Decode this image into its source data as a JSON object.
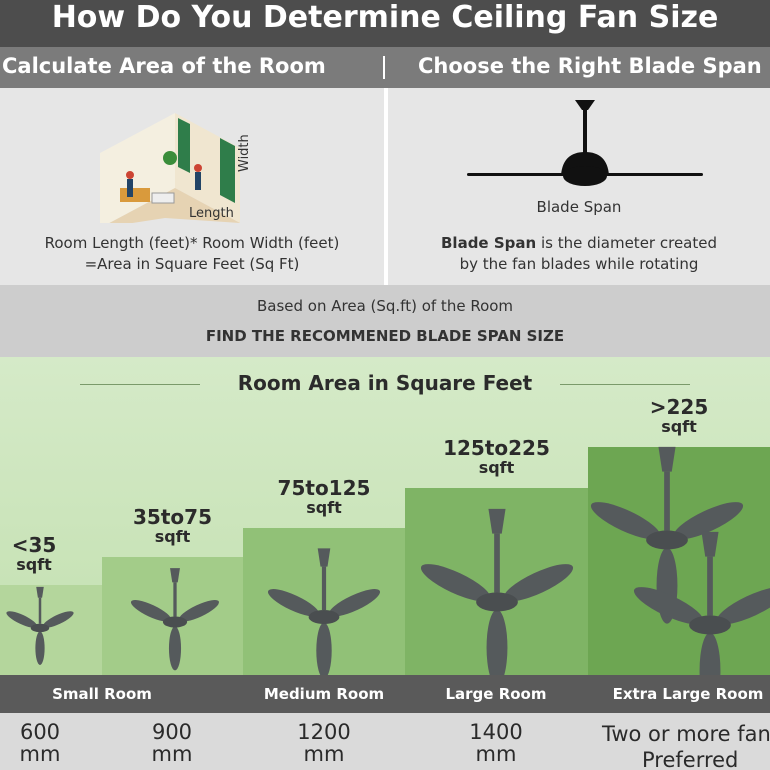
{
  "title": "How Do You Determine Ceiling Fan Size",
  "sections": [
    {
      "heading": "Calculate Area of the Room",
      "labels": {
        "width": "Width",
        "length": "Length"
      },
      "formula": [
        "Room Length (feet)* Room Width (feet)",
        "=Area in Square Feet (Sq Ft)"
      ]
    },
    {
      "heading": "Choose the Right Blade Span",
      "caption": "Blade Span",
      "description": {
        "term": "Blade Span",
        "lines": [
          "is the diameter created",
          "by the fan blades while rotating"
        ]
      }
    }
  ],
  "band": {
    "line1": "Based on Area (Sq.ft) of the Room",
    "line2": "FIND THE RECOMMENED BLADE SPAN SIZE"
  },
  "chart_heading": "Room Area in Square Feet",
  "tiers": [
    {
      "area": "<35",
      "unit": "sqft"
    },
    {
      "area": "35to75",
      "unit": "sqft"
    },
    {
      "area": "75to125",
      "unit": "sqft"
    },
    {
      "area": "125to225",
      "unit": "sqft"
    },
    {
      "area": ">225",
      "unit": "sqft"
    }
  ],
  "room_types": [
    "Small Room",
    "Medium Room",
    "Large Room",
    "Extra Large Room"
  ],
  "blade_sizes": [
    {
      "size": "600",
      "unit": "mm"
    },
    {
      "size": "900",
      "unit": "mm"
    },
    {
      "size": "1200",
      "unit": "mm"
    },
    {
      "size": "1400",
      "unit": "mm"
    },
    {
      "size": "Two or more fans",
      "unit": "Preferred"
    }
  ]
}
